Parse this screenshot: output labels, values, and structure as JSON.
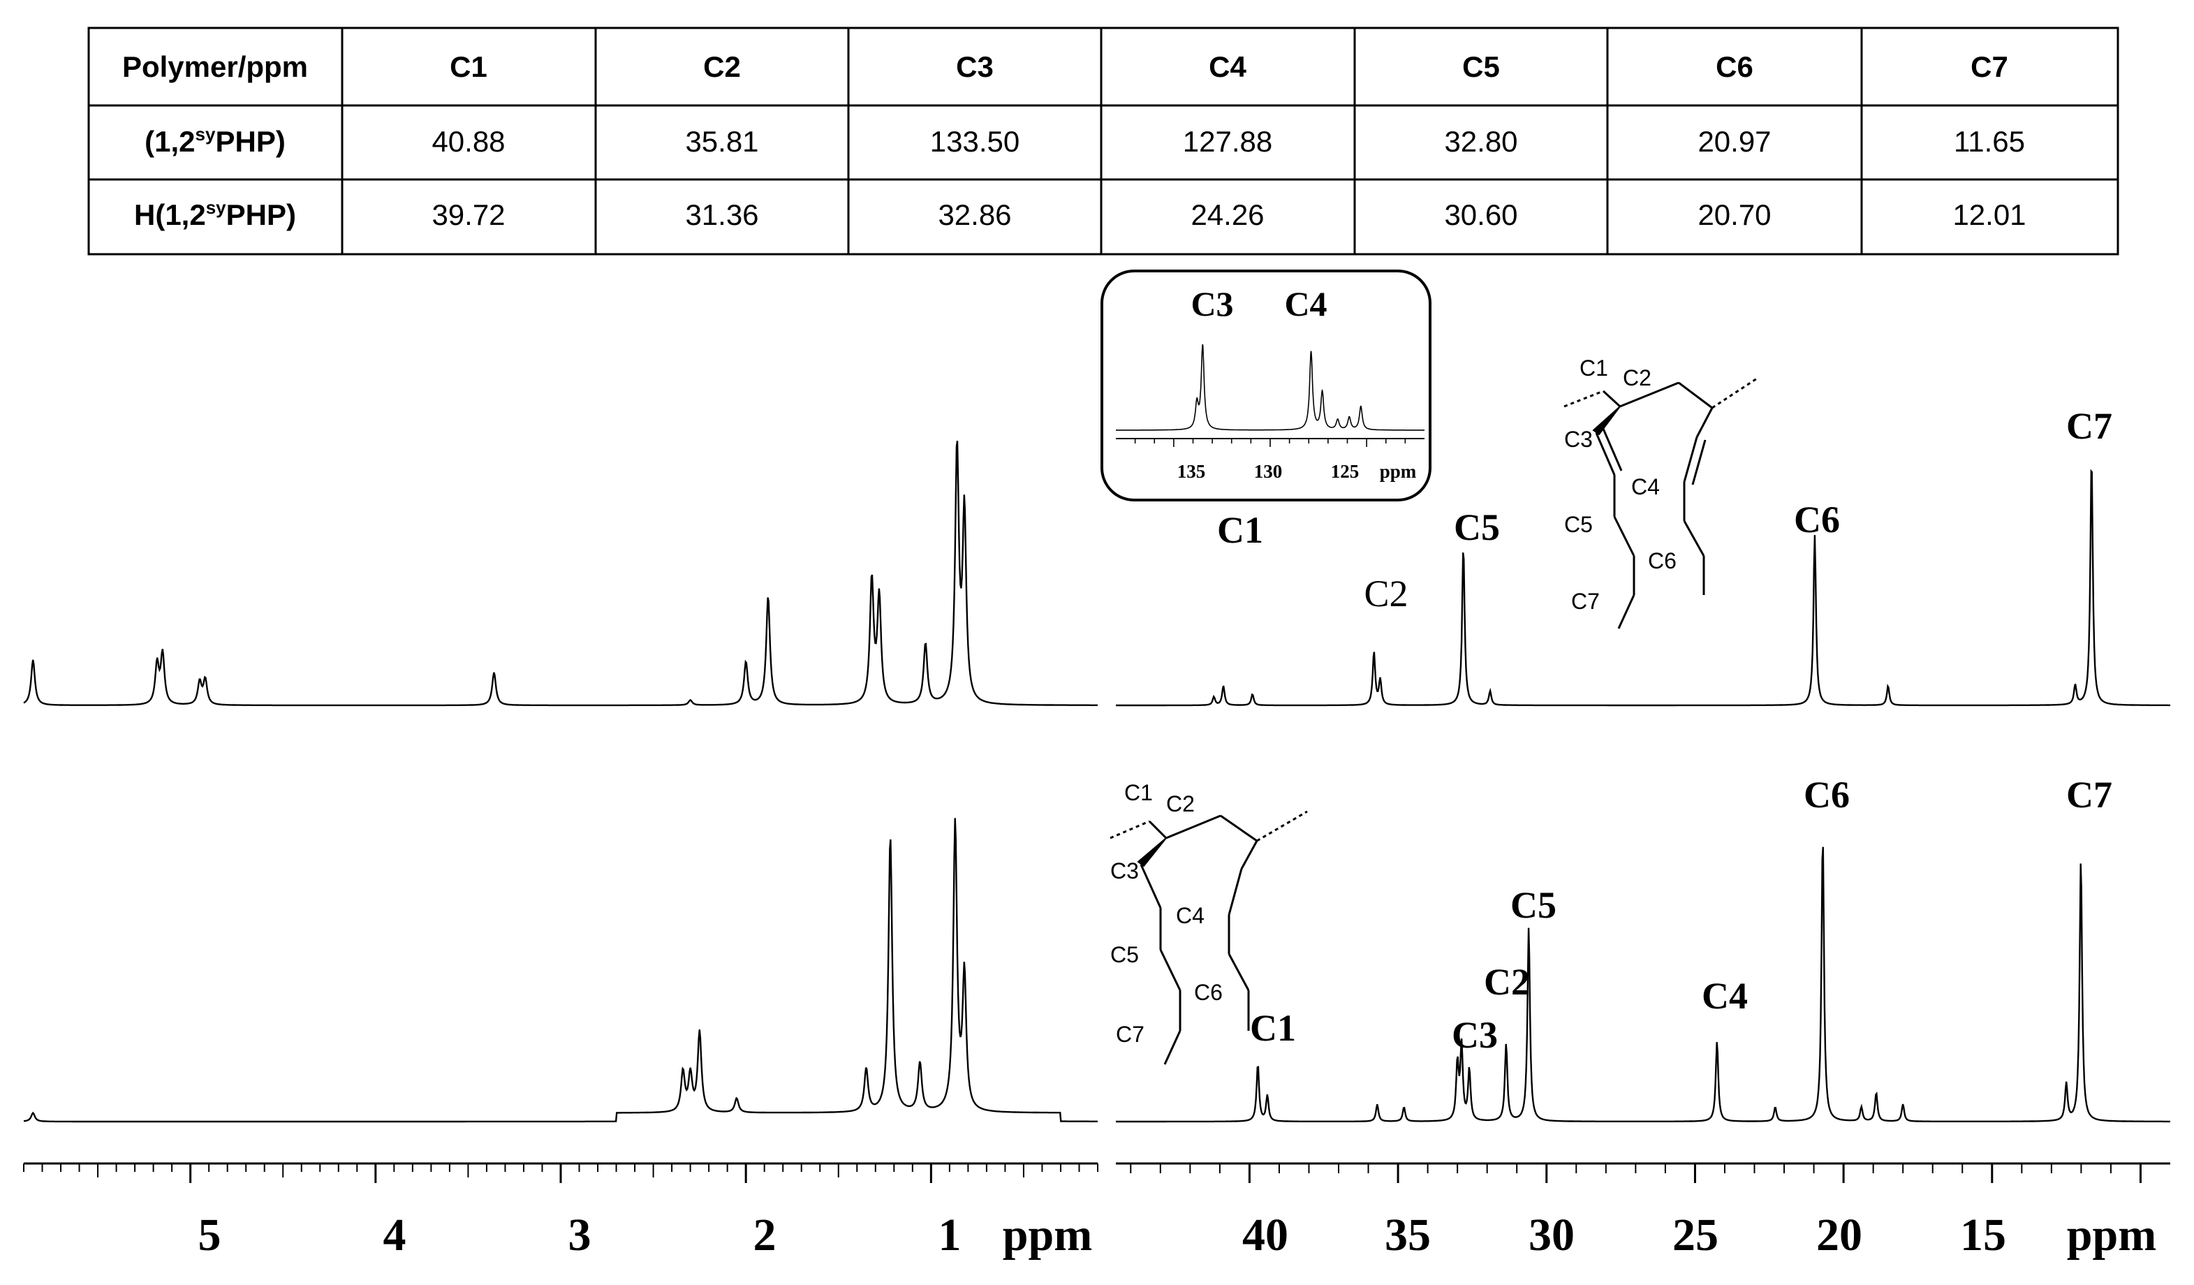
{
  "table": {
    "header": [
      "Polymer/ppm",
      "C1",
      "C2",
      "C3",
      "C4",
      "C5",
      "C6",
      "C7"
    ],
    "rows": [
      {
        "label_pre": "(1,2",
        "label_sup": "sy",
        "label_post": "PHP)",
        "values": [
          "40.88",
          "35.81",
          "133.50",
          "127.88",
          "32.80",
          "20.97",
          "11.65"
        ]
      },
      {
        "label_pre": "H(1,2",
        "label_sup": "sy",
        "label_post": "PHP)",
        "values": [
          "39.72",
          "31.36",
          "32.86",
          "24.26",
          "30.60",
          "20.70",
          "12.01"
        ]
      }
    ]
  },
  "axes": {
    "h1": {
      "ticks": [
        "5",
        "4",
        "3",
        "2",
        "1"
      ],
      "unit": "ppm"
    },
    "c13": {
      "ticks": [
        "40",
        "35",
        "30",
        "25",
        "20",
        "15"
      ],
      "unit": "ppm"
    },
    "inset": {
      "ticks": [
        "135",
        "130",
        "125"
      ],
      "unit": "ppm"
    }
  },
  "labels": {
    "top": {
      "c1": "C1",
      "c2": "C2",
      "c5": "C5",
      "c6": "C6",
      "c7": "C7"
    },
    "inset": {
      "c3": "C3",
      "c4": "C4"
    },
    "bottom": {
      "c1": "C1",
      "c3": "C3",
      "c2": "C2",
      "c5": "C5",
      "c4": "C4",
      "c6": "C6",
      "c7": "C7"
    }
  },
  "structures": {
    "top": {
      "c1": "C1",
      "c2": "C2",
      "c3": "C3",
      "c4": "C4",
      "c5": "C5",
      "c6": "C6",
      "c7": "C7"
    },
    "bottom": {
      "c1": "C1",
      "c2": "C2",
      "c3": "C3",
      "c4": "C4",
      "c5": "C5",
      "c6": "C6",
      "c7": "C7"
    }
  },
  "chart_data": [
    {
      "type": "line",
      "description_key": "1H NMR spectrum, upper (unsaturated polymer)",
      "x_range": [
        5.9,
        0.1
      ],
      "x_unit": "ppm",
      "peaks": [
        {
          "ppm": 5.85,
          "height": 0.18
        },
        {
          "ppm": 5.18,
          "height": 0.16
        },
        {
          "ppm": 5.15,
          "height": 0.2
        },
        {
          "ppm": 4.95,
          "height": 0.09
        },
        {
          "ppm": 4.92,
          "height": 0.1
        },
        {
          "ppm": 3.36,
          "height": 0.13
        },
        {
          "ppm": 2.3,
          "height": 0.02
        },
        {
          "ppm": 2.0,
          "height": 0.17
        },
        {
          "ppm": 1.88,
          "height": 0.43
        },
        {
          "ppm": 1.32,
          "height": 0.49
        },
        {
          "ppm": 1.28,
          "height": 0.42
        },
        {
          "ppm": 1.03,
          "height": 0.24
        },
        {
          "ppm": 0.86,
          "height": 1.0
        },
        {
          "ppm": 0.82,
          "height": 0.75
        }
      ]
    },
    {
      "type": "line",
      "description_key": "13C NMR spectrum, upper (unsaturated polymer)",
      "x_range": [
        44.5,
        9.0
      ],
      "x_unit": "ppm",
      "peaks": [
        {
          "ppm": 41.2,
          "height": 0.03
        },
        {
          "ppm": 40.88,
          "height": 0.07
        },
        {
          "ppm": 39.9,
          "height": 0.04
        },
        {
          "ppm": 35.81,
          "height": 0.19
        },
        {
          "ppm": 35.6,
          "height": 0.09
        },
        {
          "ppm": 32.8,
          "height": 0.57
        },
        {
          "ppm": 31.9,
          "height": 0.05
        },
        {
          "ppm": 20.97,
          "height": 0.61
        },
        {
          "ppm": 18.5,
          "height": 0.07
        },
        {
          "ppm": 12.2,
          "height": 0.07
        },
        {
          "ppm": 11.65,
          "height": 0.89
        }
      ]
    },
    {
      "type": "line",
      "description_key": "13C NMR inset, olefinic region",
      "x_range": [
        138,
        122
      ],
      "x_unit": "ppm",
      "peaks": [
        {
          "ppm": 133.5,
          "height": 1.0
        },
        {
          "ppm": 133.8,
          "height": 0.3
        },
        {
          "ppm": 127.88,
          "height": 0.93
        },
        {
          "ppm": 127.3,
          "height": 0.45
        },
        {
          "ppm": 126.5,
          "height": 0.12
        },
        {
          "ppm": 125.9,
          "height": 0.15
        },
        {
          "ppm": 125.3,
          "height": 0.28
        }
      ]
    },
    {
      "type": "line",
      "description_key": "1H NMR spectrum, lower (hydrogenated polymer)",
      "x_range": [
        5.9,
        0.1
      ],
      "x_unit": "ppm",
      "peaks": [
        {
          "ppm": 5.85,
          "height": 0.03
        },
        {
          "ppm": 2.34,
          "height": 0.14
        },
        {
          "ppm": 2.3,
          "height": 0.13
        },
        {
          "ppm": 2.25,
          "height": 0.28
        },
        {
          "ppm": 2.05,
          "height": 0.05
        },
        {
          "ppm": 1.35,
          "height": 0.15
        },
        {
          "ppm": 1.22,
          "height": 0.96
        },
        {
          "ppm": 1.06,
          "height": 0.17
        },
        {
          "ppm": 0.87,
          "height": 1.0
        },
        {
          "ppm": 0.82,
          "height": 0.47
        }
      ]
    },
    {
      "type": "line",
      "description_key": "13C NMR spectrum, lower (hydrogenated polymer)",
      "x_range": [
        44.5,
        9.0
      ],
      "x_unit": "ppm",
      "peaks": [
        {
          "ppm": 39.72,
          "height": 0.2
        },
        {
          "ppm": 39.4,
          "height": 0.09
        },
        {
          "ppm": 35.7,
          "height": 0.06
        },
        {
          "ppm": 34.8,
          "height": 0.05
        },
        {
          "ppm": 33.0,
          "height": 0.2
        },
        {
          "ppm": 32.86,
          "height": 0.26
        },
        {
          "ppm": 32.6,
          "height": 0.18
        },
        {
          "ppm": 31.36,
          "height": 0.27
        },
        {
          "ppm": 30.6,
          "height": 0.68
        },
        {
          "ppm": 24.26,
          "height": 0.28
        },
        {
          "ppm": 22.3,
          "height": 0.05
        },
        {
          "ppm": 20.7,
          "height": 1.0
        },
        {
          "ppm": 19.4,
          "height": 0.05
        },
        {
          "ppm": 18.9,
          "height": 0.1
        },
        {
          "ppm": 18.0,
          "height": 0.06
        },
        {
          "ppm": 12.5,
          "height": 0.13
        },
        {
          "ppm": 12.01,
          "height": 0.92
        }
      ]
    }
  ]
}
